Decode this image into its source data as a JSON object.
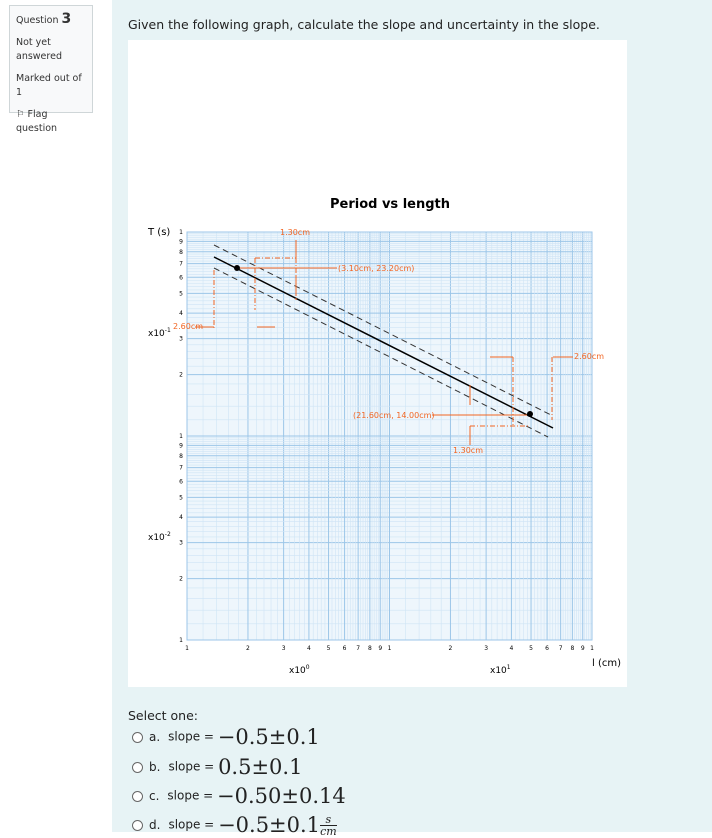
{
  "sidebar": {
    "question_label": "Question",
    "question_number": "3",
    "state": "Not yet answered",
    "marks": "Marked out of 1",
    "flag": "Flag question"
  },
  "question_text": "Given the following graph, calculate the slope and uncertainty in the slope.",
  "graph": {
    "title": "Period vs length",
    "y_axis_label": "T (s)",
    "x_axis_label": "l (cm)",
    "tick_digits": [
      "1",
      "2",
      "3",
      "4",
      "5",
      "6",
      "7",
      "8",
      "9"
    ],
    "x_multipliers": [
      {
        "base": "x10",
        "exp": "0"
      },
      {
        "base": "x10",
        "exp": "1"
      }
    ],
    "y_multipliers": [
      {
        "base": "x10",
        "exp": "-1"
      },
      {
        "base": "x10",
        "exp": "-2"
      }
    ],
    "annotations": {
      "dx_top": "1.30cm",
      "point_top": "(3.10cm, 23.20cm)",
      "dy_left": "2.60cm",
      "dy_right": "2.60cm",
      "point_bottom": "(21.60cm, 14.00cm)",
      "dx_bottom": "1.30cm"
    }
  },
  "prompt": "Select one:",
  "options": [
    {
      "letter": "a.",
      "text": "slope = ",
      "math": "−0.5±0.1"
    },
    {
      "letter": "b.",
      "text": "slope = ",
      "math": "0.5±0.1"
    },
    {
      "letter": "c.",
      "text": "slope = ",
      "math": "−0.50±0.14"
    },
    {
      "letter": "d.",
      "text": "slope = ",
      "math": "−0.5±0.1",
      "unit_num": "s",
      "unit_den": "cm"
    }
  ]
}
